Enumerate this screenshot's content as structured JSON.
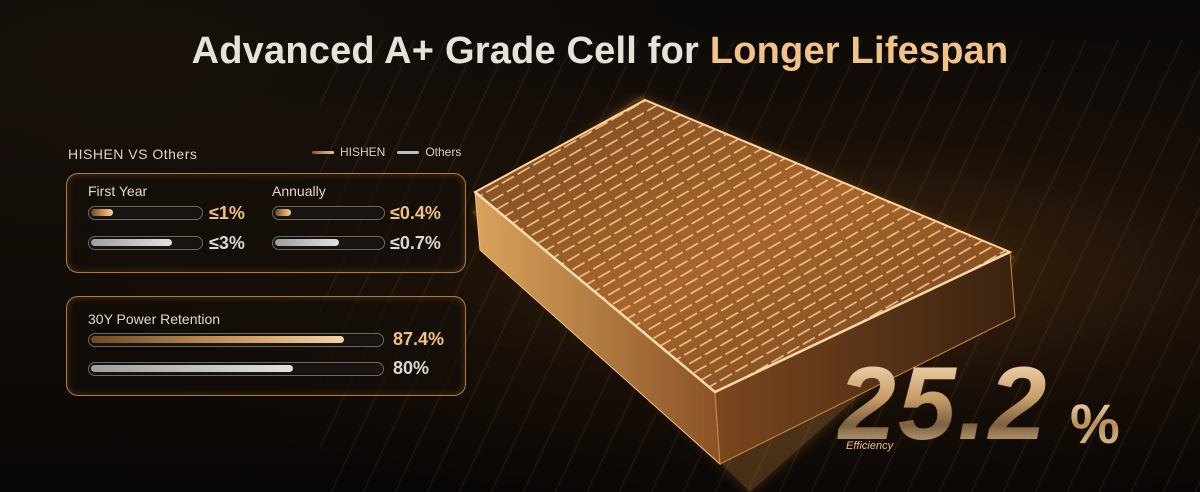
{
  "title": {
    "part1": "Advanced A+ Grade Cell for ",
    "part2": "Longer Lifespan"
  },
  "comparison": {
    "heading": "HISHEN VS Others",
    "legend": {
      "hishen": "HISHEN",
      "others": "Others"
    },
    "first_year": {
      "label": "First Year",
      "hishen_value": "≤1%",
      "others_value": "≤3%",
      "hishen_fill": 0.2,
      "others_fill": 0.75
    },
    "annually": {
      "label": "Annually",
      "hishen_value": "≤0.4%",
      "others_value": "≤0.7%",
      "hishen_fill": 0.15,
      "others_fill": 0.6
    },
    "retention": {
      "label": "30Y Power Retention",
      "hishen_value": "87.4%",
      "others_value": "80%",
      "hishen_fill": 0.874,
      "others_fill": 0.7
    }
  },
  "efficiency": {
    "value": "25.2",
    "unit": "%",
    "label": "Efficiency"
  },
  "colors": {
    "gold": "#f0c17f",
    "silver": "#d8d8d8",
    "panel_border": "#e6a050"
  }
}
